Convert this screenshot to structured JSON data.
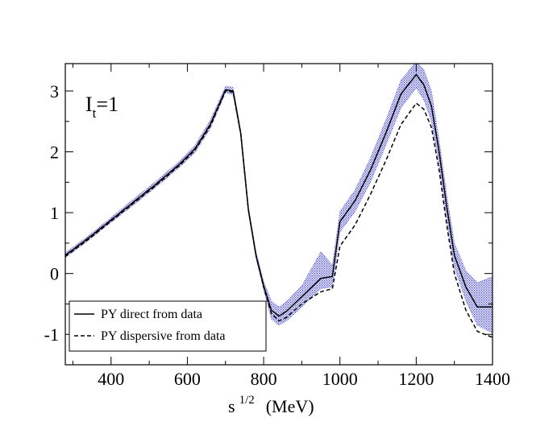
{
  "chart_data": {
    "type": "line",
    "title": "",
    "annotation": {
      "main": "I",
      "sub": "t",
      "rest": "=1"
    },
    "xlabel": {
      "base": "s",
      "sup": "1/2",
      "unit": "(MeV)"
    },
    "ylabel": "",
    "xlim": [
      280,
      1400
    ],
    "ylim": [
      -1.5,
      3.45
    ],
    "xticks": [
      400,
      600,
      800,
      1000,
      1200,
      1400
    ],
    "xtick_labels": [
      "400",
      "600",
      "800",
      "1000",
      "1200",
      "1400"
    ],
    "yticks": [
      -1,
      0,
      1,
      2,
      3
    ],
    "ytick_labels": [
      "-1",
      "0",
      "1",
      "2",
      "3"
    ],
    "grid": false,
    "legend_position": "bottom-left",
    "band_color": "#4a4ad0",
    "x": [
      280,
      340,
      400,
      460,
      520,
      580,
      620,
      660,
      700,
      720,
      740,
      760,
      780,
      800,
      820,
      840,
      860,
      900,
      950,
      980,
      1000,
      1040,
      1080,
      1120,
      1160,
      1200,
      1220,
      1240,
      1260,
      1280,
      1300,
      1330,
      1360,
      1400
    ],
    "series": [
      {
        "name": "PY direct from data",
        "style": "solid",
        "values": [
          0.3,
          0.58,
          0.88,
          1.18,
          1.48,
          1.8,
          2.05,
          2.45,
          3.02,
          3.0,
          2.3,
          1.05,
          0.3,
          -0.2,
          -0.6,
          -0.7,
          -0.62,
          -0.38,
          -0.08,
          -0.05,
          0.85,
          1.2,
          1.7,
          2.3,
          2.95,
          3.27,
          3.1,
          2.75,
          2.0,
          1.1,
          0.3,
          -0.22,
          -0.55,
          -0.55
        ]
      },
      {
        "name": "PY dispersive from data",
        "style": "dashed",
        "values": [
          0.28,
          0.56,
          0.86,
          1.16,
          1.46,
          1.78,
          2.03,
          2.42,
          3.0,
          2.98,
          2.3,
          1.05,
          0.3,
          -0.22,
          -0.65,
          -0.78,
          -0.72,
          -0.5,
          -0.3,
          -0.25,
          0.45,
          0.8,
          1.3,
          1.85,
          2.45,
          2.8,
          2.7,
          2.4,
          1.7,
          0.8,
          0.0,
          -0.6,
          -0.95,
          -1.05
        ]
      }
    ],
    "band": {
      "name": "uncertainty band",
      "lower": [
        0.26,
        0.54,
        0.84,
        1.13,
        1.43,
        1.75,
        1.99,
        2.38,
        2.97,
        2.94,
        2.25,
        1.0,
        0.24,
        -0.27,
        -0.75,
        -0.85,
        -0.78,
        -0.55,
        -0.25,
        -0.22,
        0.68,
        1.02,
        1.5,
        2.1,
        2.72,
        3.05,
        2.85,
        2.5,
        1.8,
        0.9,
        0.1,
        -0.45,
        -0.85,
        -0.98
      ],
      "upper": [
        0.34,
        0.62,
        0.92,
        1.23,
        1.53,
        1.85,
        2.11,
        2.52,
        3.08,
        3.06,
        2.35,
        1.1,
        0.36,
        -0.13,
        -0.45,
        -0.55,
        -0.46,
        -0.2,
        0.36,
        0.14,
        1.02,
        1.38,
        1.9,
        2.52,
        3.18,
        3.48,
        3.35,
        3.0,
        2.2,
        1.3,
        0.5,
        0.05,
        -0.15,
        -0.05
      ]
    }
  }
}
